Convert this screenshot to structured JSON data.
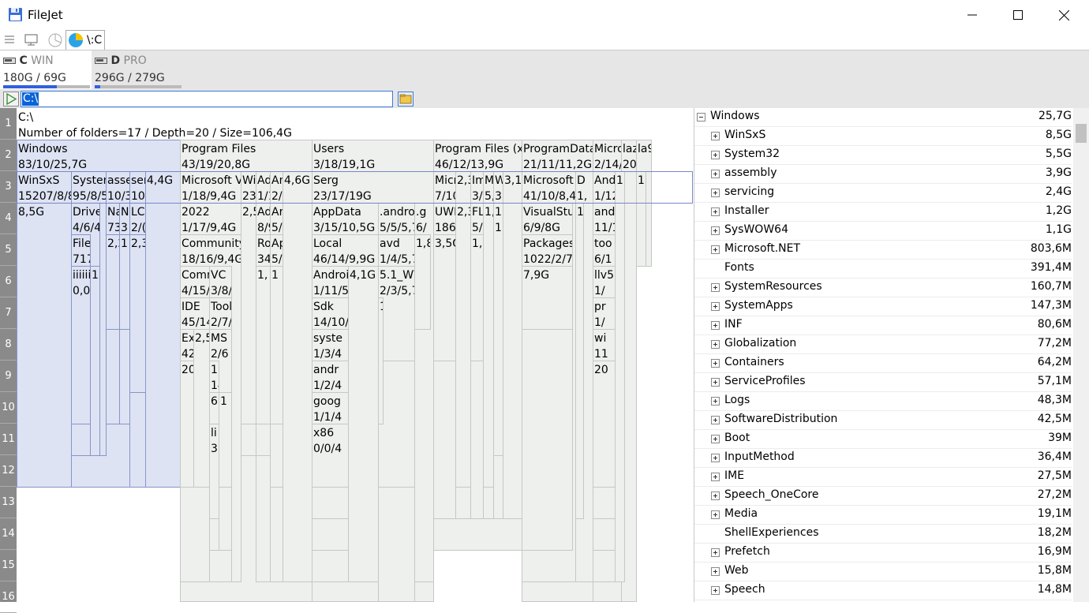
{
  "window": {
    "title": "FileJet",
    "minimize_icon": "minimize-icon",
    "maximize_icon": "maximize-icon",
    "close_icon": "close-icon"
  },
  "toolbar": {
    "tab_label": "\\:C",
    "icons": [
      "menu-icon",
      "computer-icon",
      "pie-chart-icon",
      "pie-chart-active-icon"
    ]
  },
  "drives": [
    {
      "letter": "C",
      "label": "WIN",
      "size": "180G / 69G",
      "used_fraction": 0.62
    },
    {
      "letter": "D",
      "label": "PRO",
      "size": "296G / 279G",
      "used_fraction": 0.06
    }
  ],
  "path": {
    "value": "C:\\"
  },
  "ruler": [
    "1",
    "2",
    "3",
    "4",
    "5",
    "6",
    "7",
    "8",
    "9",
    "10",
    "11",
    "12",
    "13",
    "14",
    "15",
    "16"
  ],
  "treemap": {
    "root_path": "C:\\",
    "root_summary": "Number of folders=17 / Depth=20 / Size=106,4G",
    "level2": [
      {
        "l1": "Windows",
        "l2": "83/10/25,7G"
      },
      {
        "l1": "Program Files",
        "l2": "43/19/20,8G"
      },
      {
        "l1": "Users",
        "l2": "3/18/19,1G"
      },
      {
        "l1": "Program Files (x86)",
        "l2": "46/12/13,9G"
      },
      {
        "l1": "ProgramData",
        "l2": "21/11/11,2G"
      },
      {
        "l1": "Microsoft",
        "l2": "2/14/"
      },
      {
        "l1": "laz",
        "l2": "2021"
      },
      {
        "l1": "la9",
        "l2": ""
      }
    ],
    "level3": [
      {
        "l1": "WinSxS",
        "l2": "15207/8/8,"
      },
      {
        "l1": "System32",
        "l2": "95/8/5,"
      },
      {
        "l1": "assembly",
        "l2": "10/3"
      },
      {
        "l1": "servicing",
        "l2": "10"
      },
      {
        "l1": "4,4G",
        "l2": ""
      },
      {
        "l1": "Microsoft Vi",
        "l2": "1/18/9,4G"
      },
      {
        "l1": "Wi",
        "l2": "23"
      },
      {
        "l1": "Ad",
        "l2": "1/1"
      },
      {
        "l1": "An",
        "l2": "2/"
      },
      {
        "l1": "4,6G",
        "l2": ""
      },
      {
        "l1": "Serg",
        "l2": "23/17/19G"
      },
      {
        "l1": "Micros",
        "l2": "7/10/5"
      },
      {
        "l1": "2,3",
        "l2": ""
      },
      {
        "l1": "Im",
        "l2": "3/"
      },
      {
        "l1": "M",
        "l2": "5,"
      },
      {
        "l1": "W",
        "l2": "3,"
      },
      {
        "l1": "3,1G",
        "l2": ""
      },
      {
        "l1": "Microsoft",
        "l2": "41/10/8,4"
      },
      {
        "l1": "D",
        "l2": "1,"
      },
      {
        "l1": "And",
        "l2": "1/12"
      },
      {
        "l1": "1,",
        "l2": ""
      },
      {
        "l1": "1,",
        "l2": ""
      }
    ],
    "level4": [
      {
        "l1": "8,5G",
        "l2": ""
      },
      {
        "l1": "Drive",
        "l2": "4/6/4"
      },
      {
        "l1": "FileR",
        "l2": "717/5"
      },
      {
        "l1": "iiiiii",
        "l2": "0,0,"
      },
      {
        "l1": "1,",
        "l2": ""
      },
      {
        "l1": "Na",
        "l2": "73"
      },
      {
        "l1": "N",
        "l2": "3"
      },
      {
        "l1": "2,2",
        "l2": ""
      },
      {
        "l1": "1",
        "l2": ""
      },
      {
        "l1": "LC",
        "l2": "2/("
      },
      {
        "l1": "2,3",
        "l2": ""
      },
      {
        "l1": "2022",
        "l2": "1/17/9,4G"
      },
      {
        "l1": "2,5",
        "l2": ""
      },
      {
        "l1": "Ad",
        "l2": "8/9"
      },
      {
        "l1": "Ar",
        "l2": "5/"
      },
      {
        "l1": "AppData",
        "l2": "3/15/10,5G"
      },
      {
        "l1": ".andro",
        "l2": "5/5/5,7"
      },
      {
        "l1": ".g",
        "l2": "6/"
      },
      {
        "l1": "UWI",
        "l2": "186,"
      },
      {
        "l1": "2,3",
        "l2": ""
      },
      {
        "l1": "FL",
        "l2": "5/"
      },
      {
        "l1": "1,",
        "l2": ""
      },
      {
        "l1": "1(",
        "l2": "1("
      },
      {
        "l1": "VisualStud",
        "l2": "6/9/8G"
      },
      {
        "l1": "1",
        "l2": ""
      },
      {
        "l1": "and",
        "l2": "11/1"
      },
      {
        "l1": "Community",
        "l2": "18/16/9,4G"
      },
      {
        "l1": "Ro",
        "l2": "34"
      },
      {
        "l1": "Ap",
        "l2": "5/"
      },
      {
        "l1": "Local",
        "l2": "46/14/9,9G"
      },
      {
        "l1": "avd",
        "l2": "1/4/5,7"
      },
      {
        "l1": "1,8",
        "l2": ""
      },
      {
        "l1": "3,5G",
        "l2": ""
      },
      {
        "l1": "1,8",
        "l2": ""
      },
      {
        "l1": "Packages",
        "l2": "1022/2/7,"
      },
      {
        "l1": "too",
        "l2": "6/1"
      },
      {
        "l1": "Comm",
        "l2": "4/15/"
      },
      {
        "l1": "VC",
        "l2": "3/8/"
      },
      {
        "l1": "1,",
        "l2": ""
      },
      {
        "l1": "1",
        "l2": ""
      },
      {
        "l1": "Androi",
        "l2": "1/11/5"
      },
      {
        "l1": "4,1G",
        "l2": ""
      },
      {
        "l1": "5.1_WV",
        "l2": "2/3/5,7"
      },
      {
        "l1": "7,9G",
        "l2": ""
      },
      {
        "l1": "llv5",
        "l2": "1/"
      },
      {
        "l1": "IDE",
        "l2": "45/14"
      },
      {
        "l1": "Tool",
        "l2": "2/7/"
      },
      {
        "l1": "Sdk",
        "l2": "14/10/"
      },
      {
        "l1": "pr",
        "l2": "1/"
      },
      {
        "l1": "Ex",
        "l2": "42"
      },
      {
        "l1": "2,5",
        "l2": ""
      },
      {
        "l1": "MS",
        "l2": "2/6"
      },
      {
        "l1": "syste",
        "l2": "1/3/4"
      },
      {
        "l1": "wi",
        "l2": "11"
      },
      {
        "l1": "1",
        "l2": ""
      },
      {
        "l1": "20",
        "l2": ""
      },
      {
        "l1": "1",
        "l2": "14"
      },
      {
        "l1": "6,5",
        "l2": ""
      },
      {
        "l1": "andr",
        "l2": "1/2/4"
      },
      {
        "l1": "20",
        "l2": ""
      },
      {
        "l1": "li",
        "l2": "3,"
      },
      {
        "l1": "1",
        "l2": ""
      },
      {
        "l1": "goog",
        "l2": "1/1/4"
      },
      {
        "l1": "x86",
        "l2": "0/0/4"
      },
      {
        "l1": "1",
        "l2": ""
      }
    ]
  },
  "tree": {
    "root": {
      "name": "Windows",
      "size": "25,7G"
    },
    "items": [
      {
        "name": "WinSxS",
        "size": "8,5G",
        "expandable": true
      },
      {
        "name": "System32",
        "size": "5,5G",
        "expandable": true
      },
      {
        "name": "assembly",
        "size": "3,9G",
        "expandable": true
      },
      {
        "name": "servicing",
        "size": "2,4G",
        "expandable": true
      },
      {
        "name": "Installer",
        "size": "1,2G",
        "expandable": true
      },
      {
        "name": "SysWOW64",
        "size": "1,1G",
        "expandable": true
      },
      {
        "name": "Microsoft.NET",
        "size": "803,6M",
        "expandable": true
      },
      {
        "name": "Fonts",
        "size": "391,4M",
        "expandable": false
      },
      {
        "name": "SystemResources",
        "size": "160,7M",
        "expandable": true
      },
      {
        "name": "SystemApps",
        "size": "147,3M",
        "expandable": true
      },
      {
        "name": "INF",
        "size": "80,6M",
        "expandable": true
      },
      {
        "name": "Globalization",
        "size": "77,2M",
        "expandable": true
      },
      {
        "name": "Containers",
        "size": "64,2M",
        "expandable": true
      },
      {
        "name": "ServiceProfiles",
        "size": "57,1M",
        "expandable": true
      },
      {
        "name": "Logs",
        "size": "48,3M",
        "expandable": true
      },
      {
        "name": "SoftwareDistribution",
        "size": "42,5M",
        "expandable": true
      },
      {
        "name": "Boot",
        "size": "39M",
        "expandable": true
      },
      {
        "name": "InputMethod",
        "size": "36,4M",
        "expandable": true
      },
      {
        "name": "IME",
        "size": "27,5M",
        "expandable": true
      },
      {
        "name": "Speech_OneCore",
        "size": "27,2M",
        "expandable": true
      },
      {
        "name": "Media",
        "size": "19,1M",
        "expandable": true
      },
      {
        "name": "ShellExperiences",
        "size": "18,2M",
        "expandable": false
      },
      {
        "name": "Prefetch",
        "size": "16,9M",
        "expandable": true
      },
      {
        "name": "Web",
        "size": "15,8M",
        "expandable": true
      },
      {
        "name": "Speech",
        "size": "14,8M",
        "expandable": true
      }
    ]
  },
  "colors": {
    "accent": "#3060e0",
    "selection": "#0a64d8",
    "highlight": "#dde3f3"
  }
}
